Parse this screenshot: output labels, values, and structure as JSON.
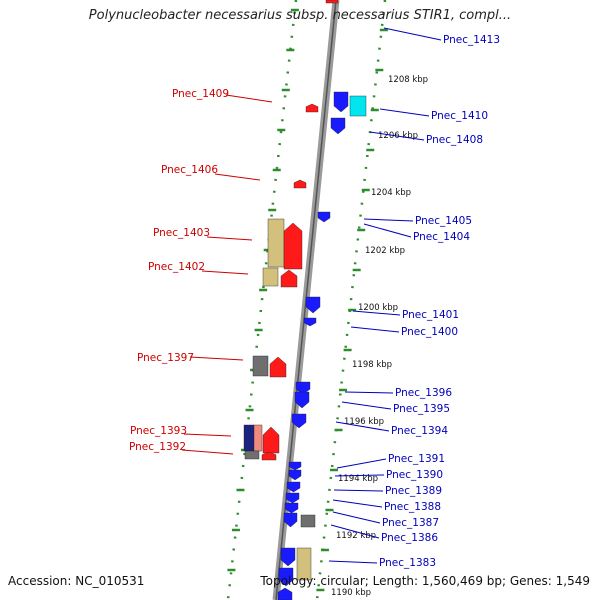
{
  "title": "Polynucleobacter necessarius subsp. necessarius STIR1, compl...",
  "accession": "Accession: NC_010531",
  "summary": "Topology: circular; Length: 1,560,469 bp; Genes: 1,549",
  "colors": {
    "left_label": "#cc0000",
    "right_label": "#0000bb",
    "red_gene": "#ff1a1a",
    "blue_gene": "#1a1aff",
    "cyan_gene": "#00e5ee",
    "khaki_gene": "#d2c07c",
    "gray_gene": "#6f6f6f",
    "navy_gene": "#1a237e",
    "salmon_gene": "#f08a80",
    "tick_green": "#2e8b2e",
    "backbone": "#9a9a9a"
  },
  "scale_labels": [
    "1208 kbp",
    "1206 kbp",
    "1204 kbp",
    "1202 kbp",
    "1200 kbp",
    "1198 kbp",
    "1196 kbp",
    "1194 kbp",
    "1192 kbp",
    "1190 kbp"
  ],
  "left_labels": [
    "Pnec_1409",
    "Pnec_1406",
    "Pnec_1403",
    "Pnec_1402",
    "Pnec_1397",
    "Pnec_1393",
    "Pnec_1392"
  ],
  "right_labels": [
    "Pnec_1413",
    "Pnec_1410",
    "Pnec_1408",
    "Pnec_1405",
    "Pnec_1404",
    "Pnec_1401",
    "Pnec_1400",
    "Pnec_1396",
    "Pnec_1395",
    "Pnec_1394",
    "Pnec_1391",
    "Pnec_1390",
    "Pnec_1389",
    "Pnec_1388",
    "Pnec_1387",
    "Pnec_1386",
    "Pnec_1383"
  ]
}
